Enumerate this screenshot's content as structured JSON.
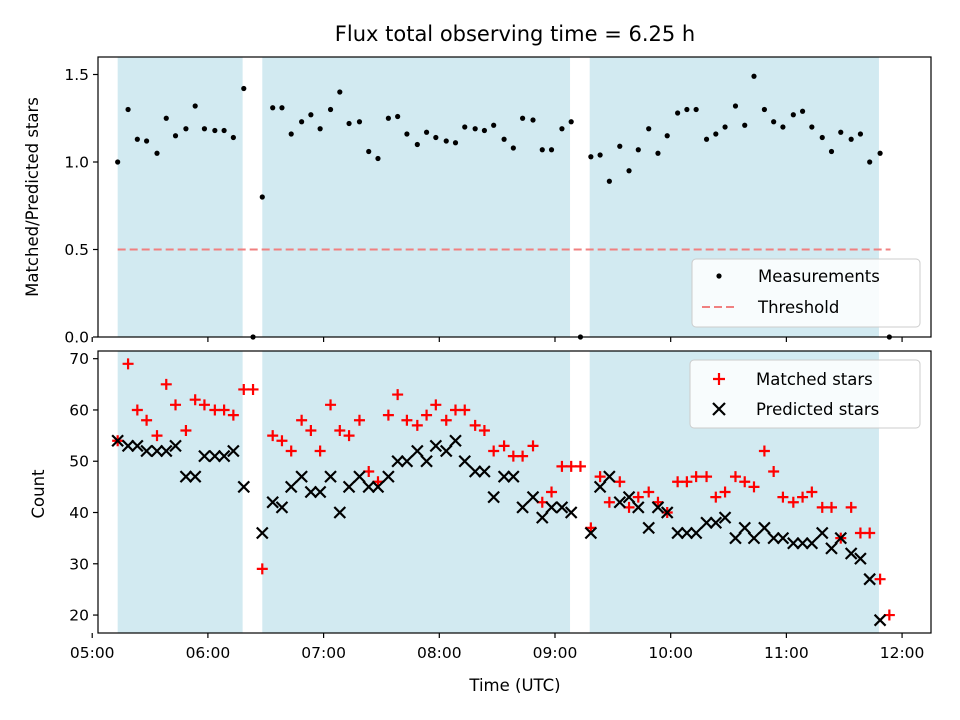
{
  "title": "Flux total observing time = 6.25 h",
  "colors": {
    "band": "#add8e6",
    "measurement": "#000000",
    "threshold": "#f08080",
    "matched": "#ff0000",
    "predicted": "#000000"
  },
  "chart_data": [
    {
      "type": "scatter",
      "title": "Flux total observing time = 6.25 h",
      "ylabel": "Matched/Predicted stars",
      "xlabel": "",
      "xlim": [
        5.05,
        12.25
      ],
      "ylim": [
        0.0,
        1.6
      ],
      "yticks": [
        "0.0",
        "0.5",
        "1.0",
        "1.5"
      ],
      "legend_position": "lower-right",
      "legend": [
        "Measurements",
        "Threshold"
      ],
      "threshold": 0.5,
      "threshold_range": [
        5.22,
        11.9
      ],
      "observing_windows": [
        [
          5.22,
          6.3
        ],
        [
          6.47,
          9.13
        ],
        [
          9.3,
          11.8
        ]
      ],
      "series": [
        {
          "name": "Measurements",
          "x": [
            5.22,
            5.31,
            5.39,
            5.47,
            5.56,
            5.64,
            5.72,
            5.81,
            5.89,
            5.97,
            6.06,
            6.14,
            6.22,
            6.31,
            6.39,
            6.47,
            6.56,
            6.64,
            6.72,
            6.81,
            6.89,
            6.97,
            7.06,
            7.14,
            7.22,
            7.31,
            7.39,
            7.47,
            7.56,
            7.64,
            7.72,
            7.81,
            7.89,
            7.97,
            8.06,
            8.14,
            8.22,
            8.31,
            8.39,
            8.47,
            8.56,
            8.64,
            8.72,
            8.81,
            8.89,
            8.97,
            9.06,
            9.14,
            9.22,
            9.31,
            9.39,
            9.47,
            9.56,
            9.64,
            9.72,
            9.81,
            9.89,
            9.97,
            10.06,
            10.14,
            10.22,
            10.31,
            10.39,
            10.47,
            10.56,
            10.64,
            10.72,
            10.81,
            10.89,
            10.97,
            11.06,
            11.14,
            11.22,
            11.31,
            11.39,
            11.47,
            11.56,
            11.64,
            11.72,
            11.81,
            11.89
          ],
          "y": [
            1.0,
            1.3,
            1.13,
            1.12,
            1.05,
            1.25,
            1.15,
            1.19,
            1.32,
            1.19,
            1.18,
            1.18,
            1.14,
            1.42,
            0.0,
            0.8,
            1.31,
            1.31,
            1.16,
            1.23,
            1.27,
            1.19,
            1.3,
            1.4,
            1.22,
            1.23,
            1.06,
            1.02,
            1.25,
            1.26,
            1.16,
            1.1,
            1.17,
            1.14,
            1.12,
            1.11,
            1.2,
            1.19,
            1.18,
            1.21,
            1.13,
            1.08,
            1.25,
            1.24,
            1.07,
            1.07,
            1.19,
            1.23,
            0.0,
            1.03,
            1.04,
            0.89,
            1.09,
            0.95,
            1.07,
            1.19,
            1.05,
            1.15,
            1.28,
            1.3,
            1.3,
            1.13,
            1.16,
            1.2,
            1.32,
            1.21,
            1.49,
            1.3,
            1.23,
            1.2,
            1.27,
            1.29,
            1.2,
            1.14,
            1.06,
            1.17,
            1.13,
            1.16,
            1.0,
            1.05,
            0.0
          ]
        }
      ]
    },
    {
      "type": "scatter",
      "title": "",
      "xlabel": "Time (UTC)",
      "ylabel": "Count",
      "xlim": [
        5.05,
        12.25
      ],
      "ylim": [
        16.5,
        71.5
      ],
      "xticks": [
        "05:00",
        "06:00",
        "07:00",
        "08:00",
        "09:00",
        "10:00",
        "11:00",
        "12:00"
      ],
      "yticks": [
        "20",
        "30",
        "40",
        "50",
        "60",
        "70"
      ],
      "legend_position": "top-right",
      "legend": [
        "Matched stars",
        "Predicted stars"
      ],
      "observing_windows": [
        [
          5.22,
          6.3
        ],
        [
          6.47,
          9.13
        ],
        [
          9.3,
          11.8
        ]
      ],
      "series": [
        {
          "name": "Matched stars",
          "marker": "+",
          "x": [
            5.22,
            5.31,
            5.39,
            5.47,
            5.56,
            5.64,
            5.72,
            5.81,
            5.89,
            5.97,
            6.06,
            6.14,
            6.22,
            6.31,
            6.39,
            6.47,
            6.56,
            6.64,
            6.72,
            6.81,
            6.89,
            6.97,
            7.06,
            7.14,
            7.22,
            7.31,
            7.39,
            7.47,
            7.56,
            7.64,
            7.72,
            7.81,
            7.89,
            7.97,
            8.06,
            8.14,
            8.22,
            8.31,
            8.39,
            8.47,
            8.56,
            8.64,
            8.72,
            8.81,
            8.89,
            8.97,
            9.06,
            9.14,
            9.22,
            9.31,
            9.39,
            9.47,
            9.56,
            9.64,
            9.72,
            9.81,
            9.89,
            9.97,
            10.06,
            10.14,
            10.22,
            10.31,
            10.39,
            10.47,
            10.56,
            10.64,
            10.72,
            10.81,
            10.89,
            10.97,
            11.06,
            11.14,
            11.22,
            11.31,
            11.39,
            11.47,
            11.56,
            11.64,
            11.72,
            11.81,
            11.89
          ],
          "y": [
            54,
            69,
            60,
            58,
            55,
            65,
            61,
            56,
            62,
            61,
            60,
            60,
            59,
            64,
            64,
            29,
            55,
            54,
            52,
            58,
            56,
            52,
            61,
            56,
            55,
            58,
            48,
            46,
            59,
            63,
            58,
            57,
            59,
            61,
            58,
            60,
            60,
            57,
            56,
            52,
            53,
            51,
            51,
            53,
            42,
            44,
            49,
            49,
            49,
            37,
            47,
            42,
            46,
            41,
            43,
            44,
            42,
            40,
            46,
            46,
            47,
            47,
            43,
            44,
            47,
            46,
            45,
            52,
            48,
            43,
            42,
            43,
            44,
            41,
            41,
            35,
            41,
            36,
            36,
            27,
            20
          ]
        },
        {
          "name": "Predicted stars",
          "marker": "x",
          "x": [
            5.22,
            5.31,
            5.39,
            5.47,
            5.56,
            5.64,
            5.72,
            5.81,
            5.89,
            5.97,
            6.06,
            6.14,
            6.22,
            6.31,
            6.47,
            6.56,
            6.64,
            6.72,
            6.81,
            6.89,
            6.97,
            7.06,
            7.14,
            7.22,
            7.31,
            7.39,
            7.47,
            7.56,
            7.64,
            7.72,
            7.81,
            7.89,
            7.97,
            8.06,
            8.14,
            8.22,
            8.31,
            8.39,
            8.47,
            8.56,
            8.64,
            8.72,
            8.81,
            8.89,
            8.97,
            9.06,
            9.14,
            9.31,
            9.39,
            9.47,
            9.56,
            9.64,
            9.72,
            9.81,
            9.89,
            9.97,
            10.06,
            10.14,
            10.22,
            10.31,
            10.39,
            10.47,
            10.56,
            10.64,
            10.72,
            10.81,
            10.89,
            10.97,
            11.06,
            11.14,
            11.22,
            11.31,
            11.39,
            11.47,
            11.56,
            11.64,
            11.72,
            11.81
          ],
          "y": [
            54,
            53,
            53,
            52,
            52,
            52,
            53,
            47,
            47,
            51,
            51,
            51,
            52,
            45,
            36,
            42,
            41,
            45,
            47,
            44,
            44,
            47,
            40,
            45,
            47,
            45,
            45,
            47,
            50,
            50,
            52,
            50,
            53,
            52,
            54,
            50,
            48,
            48,
            43,
            47,
            47,
            41,
            43,
            39,
            41,
            41,
            40,
            36,
            45,
            47,
            42,
            43,
            41,
            37,
            41,
            40,
            36,
            36,
            36,
            38,
            38,
            39,
            35,
            37,
            35,
            37,
            35,
            35,
            34,
            34,
            34,
            36,
            33,
            35,
            32,
            31,
            27,
            19
          ]
        }
      ]
    }
  ]
}
